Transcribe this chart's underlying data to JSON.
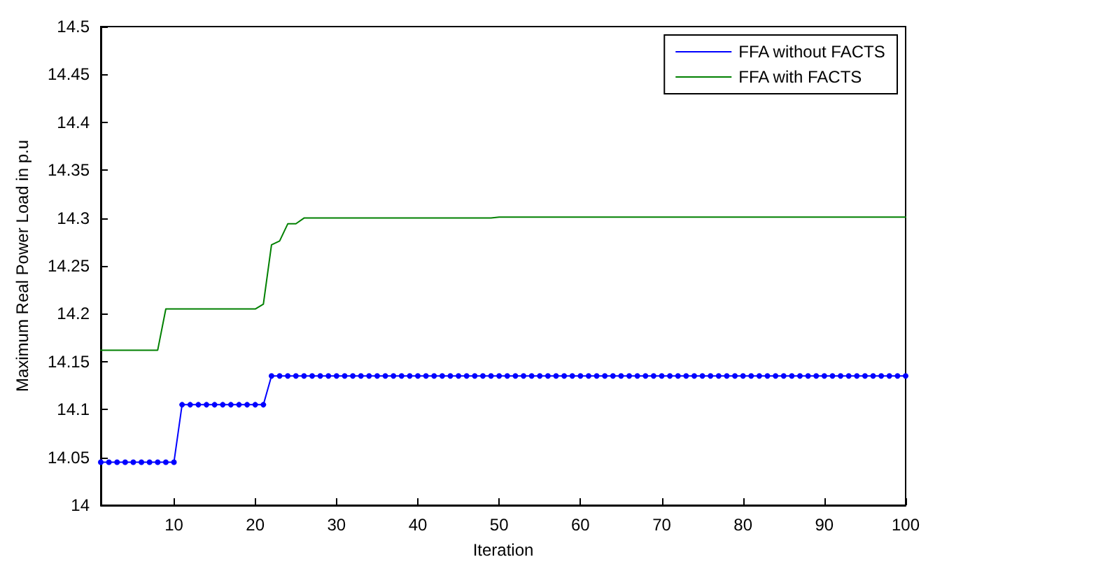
{
  "chart_data": {
    "type": "line",
    "xlabel": "Iteration",
    "ylabel": "Maximum Real Power Load in p.u",
    "x": [
      1,
      2,
      3,
      4,
      5,
      6,
      7,
      8,
      9,
      10,
      11,
      12,
      13,
      14,
      15,
      16,
      17,
      18,
      19,
      20,
      21,
      22,
      23,
      24,
      25,
      26,
      27,
      28,
      29,
      30,
      31,
      32,
      33,
      34,
      35,
      36,
      37,
      38,
      39,
      40,
      41,
      42,
      43,
      44,
      45,
      46,
      47,
      48,
      49,
      50,
      51,
      52,
      53,
      54,
      55,
      56,
      57,
      58,
      59,
      60,
      61,
      62,
      63,
      64,
      65,
      66,
      67,
      68,
      69,
      70,
      71,
      72,
      73,
      74,
      75,
      76,
      77,
      78,
      79,
      80,
      81,
      82,
      83,
      84,
      85,
      86,
      87,
      88,
      89,
      90,
      91,
      92,
      93,
      94,
      95,
      96,
      97,
      98,
      99,
      100
    ],
    "series": [
      {
        "name": "FFA without FACTS",
        "color": "#0000ff",
        "marker": "circle",
        "values": [
          14.045,
          14.045,
          14.045,
          14.045,
          14.045,
          14.045,
          14.045,
          14.045,
          14.045,
          14.045,
          14.105,
          14.105,
          14.105,
          14.105,
          14.105,
          14.105,
          14.105,
          14.105,
          14.105,
          14.105,
          14.105,
          14.135,
          14.135,
          14.135,
          14.135,
          14.135,
          14.135,
          14.135,
          14.135,
          14.135,
          14.135,
          14.135,
          14.135,
          14.135,
          14.135,
          14.135,
          14.135,
          14.135,
          14.135,
          14.135,
          14.135,
          14.135,
          14.135,
          14.135,
          14.135,
          14.135,
          14.135,
          14.135,
          14.135,
          14.135,
          14.135,
          14.135,
          14.135,
          14.135,
          14.135,
          14.135,
          14.135,
          14.135,
          14.135,
          14.135,
          14.135,
          14.135,
          14.135,
          14.135,
          14.135,
          14.135,
          14.135,
          14.135,
          14.135,
          14.135,
          14.135,
          14.135,
          14.135,
          14.135,
          14.135,
          14.135,
          14.135,
          14.135,
          14.135,
          14.135,
          14.135,
          14.135,
          14.135,
          14.135,
          14.135,
          14.135,
          14.135,
          14.135,
          14.135,
          14.135,
          14.135,
          14.135,
          14.135,
          14.135,
          14.135,
          14.135,
          14.135,
          14.135,
          14.135,
          14.135
        ]
      },
      {
        "name": "FFA with FACTS",
        "color": "#008000",
        "marker": "none",
        "values": [
          14.162,
          14.162,
          14.162,
          14.162,
          14.162,
          14.162,
          14.162,
          14.162,
          14.205,
          14.205,
          14.205,
          14.205,
          14.205,
          14.205,
          14.205,
          14.205,
          14.205,
          14.205,
          14.205,
          14.205,
          14.21,
          14.272,
          14.276,
          14.294,
          14.294,
          14.3,
          14.3,
          14.3,
          14.3,
          14.3,
          14.3,
          14.3,
          14.3,
          14.3,
          14.3,
          14.3,
          14.3,
          14.3,
          14.3,
          14.3,
          14.3,
          14.3,
          14.3,
          14.3,
          14.3,
          14.3,
          14.3,
          14.3,
          14.3,
          14.301,
          14.301,
          14.301,
          14.301,
          14.301,
          14.301,
          14.301,
          14.301,
          14.301,
          14.301,
          14.301,
          14.301,
          14.301,
          14.301,
          14.301,
          14.301,
          14.301,
          14.301,
          14.301,
          14.301,
          14.301,
          14.301,
          14.301,
          14.301,
          14.301,
          14.301,
          14.301,
          14.301,
          14.301,
          14.301,
          14.301,
          14.301,
          14.301,
          14.301,
          14.301,
          14.301,
          14.301,
          14.301,
          14.301,
          14.301,
          14.301,
          14.301,
          14.301,
          14.301,
          14.301,
          14.301,
          14.301,
          14.301,
          14.301,
          14.301,
          14.301
        ]
      }
    ],
    "xlim": [
      1,
      100
    ],
    "xticks": [
      10,
      20,
      30,
      40,
      50,
      60,
      70,
      80,
      90,
      100
    ],
    "ylim": [
      14,
      14.5
    ],
    "yticks": [
      14,
      14.05,
      14.1,
      14.15,
      14.2,
      14.25,
      14.3,
      14.35,
      14.4,
      14.45,
      14.5
    ],
    "grid": false,
    "legend": "top right"
  }
}
